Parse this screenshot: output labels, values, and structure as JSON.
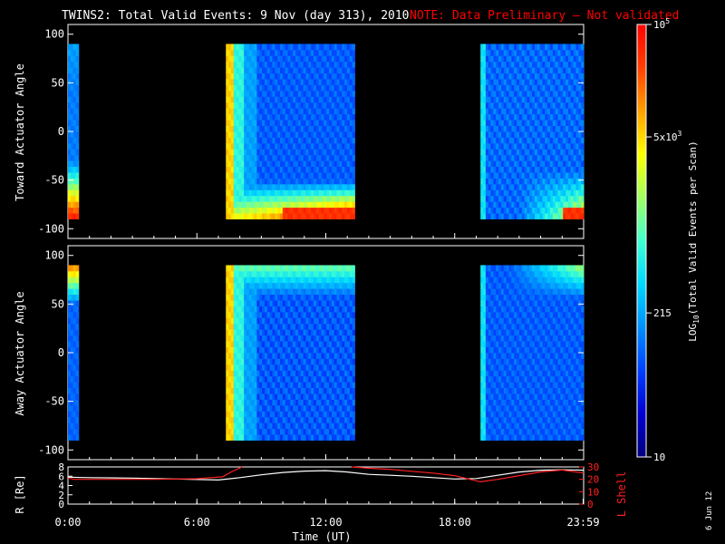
{
  "title": {
    "main": "TWINS2: Total Valid Events:  9 Nov (day 313), 2010",
    "note": "NOTE: Data Preliminary – Not validated",
    "note_color": "#ff0000"
  },
  "stamp": "6 Jun 12",
  "chart_data": [
    {
      "type": "heatmap",
      "ylabel": "Toward Actuator Angle",
      "ylim": [
        -110,
        110
      ],
      "yticks": [
        100,
        50,
        0,
        -50,
        -100
      ],
      "data_ylim": [
        -90,
        90
      ],
      "xlim_hours": [
        0,
        24
      ],
      "data_blocks_hours": [
        [
          0.0,
          0.5
        ],
        [
          7.35,
          13.35
        ],
        [
          19.2,
          24.0
        ]
      ],
      "colormap": "rainbow (blue→cyan→yellow→red)"
    },
    {
      "type": "heatmap",
      "ylabel": "Away Actuator Angle",
      "ylim": [
        -110,
        110
      ],
      "yticks": [
        100,
        50,
        0,
        -50,
        -100
      ],
      "data_ylim": [
        -90,
        90
      ],
      "xlim_hours": [
        0,
        24
      ],
      "data_blocks_hours": [
        [
          0.0,
          0.5
        ],
        [
          7.35,
          13.35
        ],
        [
          19.2,
          24.0
        ]
      ],
      "colormap": "rainbow (blue→cyan→yellow→red)"
    },
    {
      "type": "line",
      "ylabel_left": "R [Re]",
      "ylabel_right": "L Shell",
      "ylim_left": [
        0,
        8
      ],
      "ylim_right": [
        0,
        30
      ],
      "yticks_left": [
        "8",
        "6",
        "4",
        "2",
        "0"
      ],
      "yticks_right": [
        "30",
        "20",
        "10",
        "0"
      ],
      "xlabel": "Time (UT)",
      "xticks": [
        {
          "label": "0:00",
          "hour": 0
        },
        {
          "label": "6:00",
          "hour": 6
        },
        {
          "label": "12:00",
          "hour": 12
        },
        {
          "label": "18:00",
          "hour": 18
        },
        {
          "label": "23:59",
          "hour": 23.98
        }
      ],
      "series": [
        {
          "color": "#ffffff",
          "x": [
            0,
            1,
            3,
            5,
            7,
            8,
            9,
            10,
            11,
            12,
            13,
            14,
            15,
            16,
            17,
            18,
            19,
            20,
            21,
            22,
            23,
            24
          ],
          "y": [
            5.8,
            5.7,
            5.6,
            5.4,
            5.2,
            5.7,
            6.3,
            6.8,
            7.1,
            7.2,
            6.9,
            6.4,
            6.2,
            6.0,
            5.7,
            5.4,
            5.5,
            6.2,
            6.9,
            7.3,
            7.4,
            7.3
          ]
        },
        {
          "color": "#ff2020",
          "x": [
            0,
            0.3,
            2,
            4,
            6,
            7.2,
            7.6,
            8.1,
            null,
            13.2,
            14,
            15,
            16,
            17,
            18,
            19.2,
            20,
            21,
            22,
            23,
            24
          ],
          "y": [
            21,
            20,
            20,
            20,
            20.5,
            22,
            26,
            31,
            null,
            31,
            29,
            28,
            26.5,
            25,
            23,
            18,
            20,
            23,
            26,
            27.5,
            25
          ]
        }
      ]
    }
  ],
  "colorbar": {
    "label": "LOG",
    "label_sub": "10",
    "label_rest": "(Total Valid Events per Scan)",
    "ticks": [
      {
        "base": "10",
        "exp": "5",
        "frac": 1.0
      },
      {
        "base": "5x10",
        "exp": "3",
        "frac": 0.74
      },
      {
        "base": "215",
        "exp": "",
        "frac": 0.333
      },
      {
        "base": "10",
        "exp": "",
        "frac": 0.0
      }
    ],
    "stops": [
      "#000080",
      "#0000d0",
      "#0040ff",
      "#0090ff",
      "#00d8ff",
      "#40ffd0",
      "#a0ff60",
      "#ffff00",
      "#ffa000",
      "#ff4000",
      "#ff0000"
    ]
  }
}
